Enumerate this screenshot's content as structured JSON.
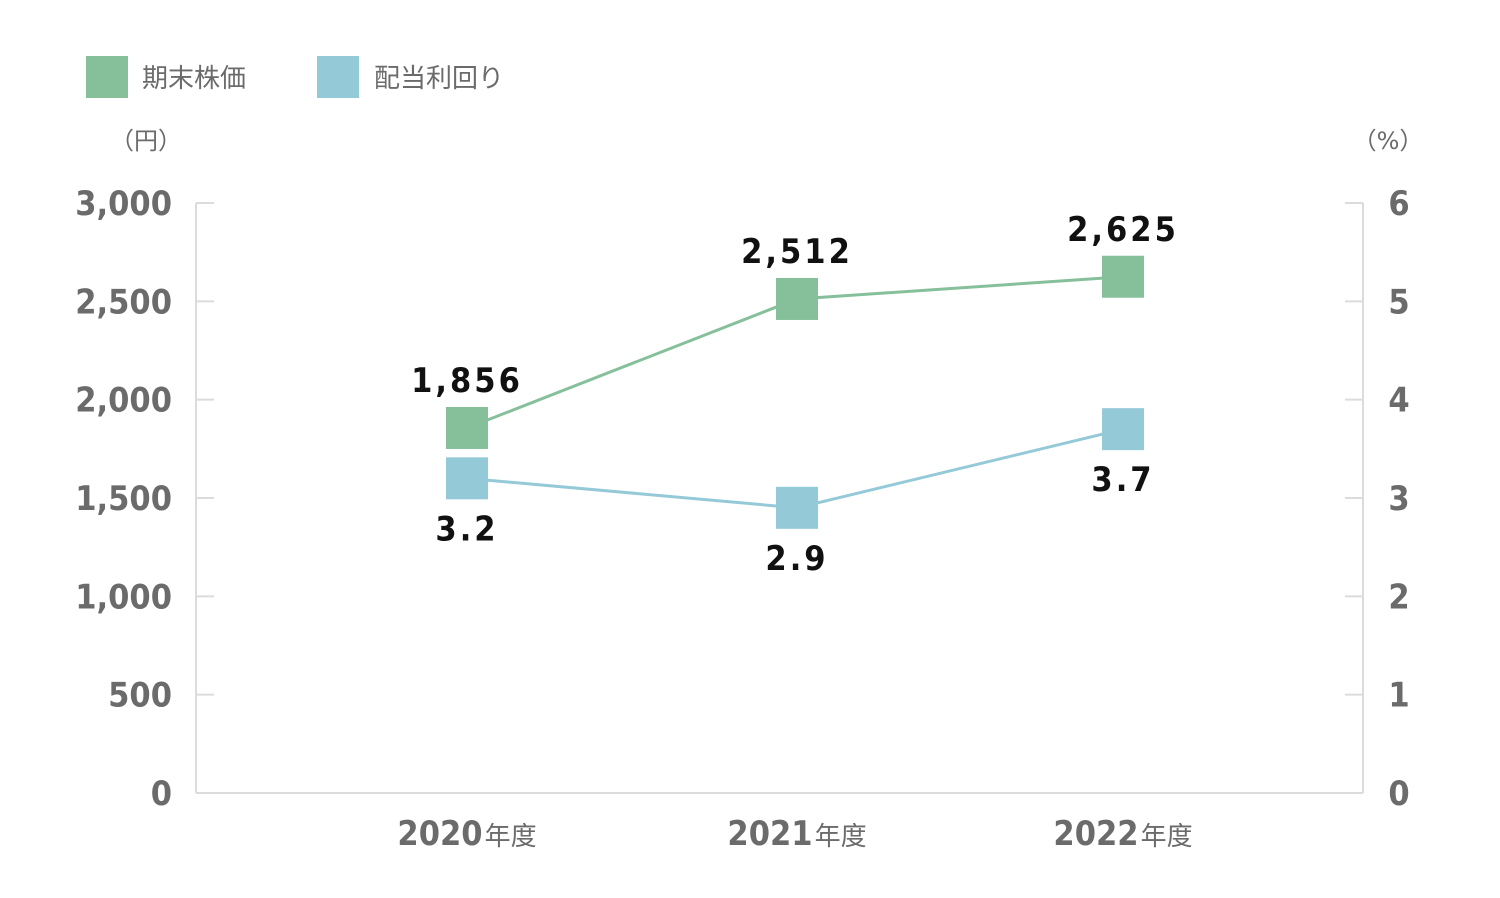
{
  "legend": {
    "items": [
      {
        "label": "期末株価",
        "color": "#86c09b"
      },
      {
        "label": "配当利回り",
        "color": "#94c9d8"
      }
    ]
  },
  "axes": {
    "left_unit": "（円）",
    "right_unit": "（%）",
    "left_ticks": [
      "0",
      "500",
      "1,000",
      "1,500",
      "2,000",
      "2,500",
      "3,000"
    ],
    "right_ticks": [
      "0",
      "1",
      "2",
      "3",
      "4",
      "5",
      "6"
    ],
    "x_ticks": [
      {
        "year": "2020",
        "suffix": "年度"
      },
      {
        "year": "2021",
        "suffix": "年度"
      },
      {
        "year": "2022",
        "suffix": "年度"
      }
    ]
  },
  "chart_data": {
    "type": "line",
    "categories": [
      "2020年度",
      "2021年度",
      "2022年度"
    ],
    "series": [
      {
        "name": "期末株価",
        "axis": "left",
        "values": [
          1856,
          2512,
          2625
        ],
        "labels": [
          "1,856",
          "2,512",
          "2,625"
        ],
        "label_position": "above",
        "color": "#86c09b"
      },
      {
        "name": "配当利回り",
        "axis": "right",
        "values": [
          3.2,
          2.9,
          3.7
        ],
        "labels": [
          "3.2",
          "2.9",
          "3.7"
        ],
        "label_position": "below",
        "color": "#94c9d8"
      }
    ],
    "ylim_left": [
      0,
      3000
    ],
    "ylim_right": [
      0,
      6
    ],
    "ylabel_left": "（円）",
    "ylabel_right": "（%）",
    "legend_position": "top-left",
    "grid": false
  }
}
